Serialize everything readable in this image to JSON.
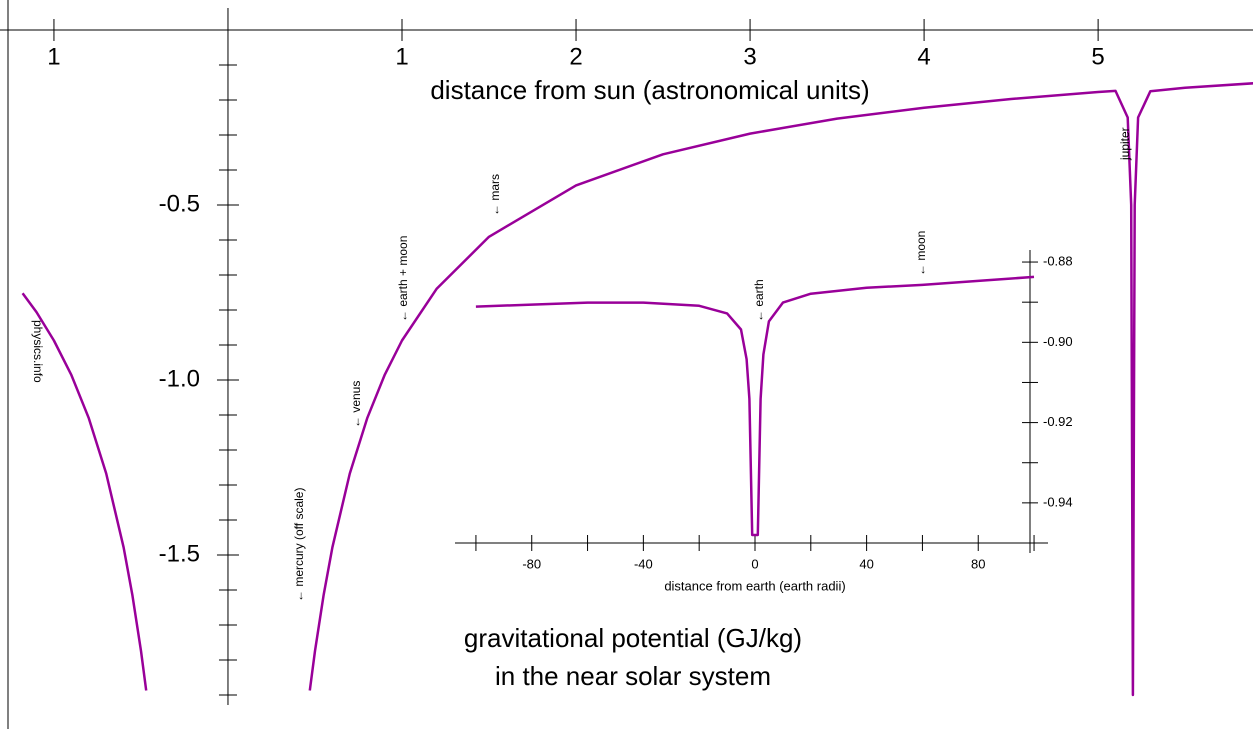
{
  "chart_data": [
    {
      "type": "line",
      "title": [
        "gravitational potential (GJ/kg)",
        "in the near solar system"
      ],
      "xlabel": "distance from sun (astronomical units)",
      "xlim": [
        -1.31,
        5.89
      ],
      "ylim": [
        -1.9,
        0
      ],
      "xticks": [
        {
          "value": -1,
          "label": "1"
        },
        1,
        2,
        3,
        4,
        5
      ],
      "yticks": [
        -0.5,
        {
          "value": -1,
          "label": "-1.0"
        },
        -1.5
      ],
      "yminorticks": [
        -0.1,
        -0.2,
        -0.3,
        -0.4,
        -0.6,
        -0.7,
        -0.8,
        -0.9,
        -1.1,
        -1.2,
        -1.3,
        -1.4,
        -1.6,
        -1.7,
        -1.8,
        -1.9
      ],
      "x": [
        -1.18,
        -1.1,
        -1.0,
        -0.9,
        -0.8,
        -0.7,
        -0.6,
        -0.55,
        -0.5,
        -0.47,
        0,
        0.47,
        0.5,
        0.55,
        0.6,
        0.7,
        0.8,
        0.9,
        1.0,
        1.2,
        1.5,
        2,
        2.5,
        3,
        3.5,
        4,
        4.5,
        5,
        5.1,
        5.17,
        5.19,
        5.2,
        5.21,
        5.23,
        5.3,
        5.5,
        5.9
      ],
      "series": [
        {
          "color": "#990099",
          "values": [
            -0.752,
            -0.806,
            -0.887,
            -0.986,
            -1.109,
            -1.267,
            -1.478,
            -1.613,
            -1.774,
            -1.887,
            null,
            -1.887,
            -1.774,
            -1.613,
            -1.478,
            -1.267,
            -1.109,
            -0.986,
            -0.887,
            -0.739,
            -0.591,
            -0.444,
            -0.355,
            -0.296,
            -0.253,
            -0.222,
            -0.197,
            -0.177,
            -0.174,
            -0.25,
            -0.5,
            -1.9,
            -0.5,
            -0.25,
            -0.175,
            -0.165,
            -0.152
          ]
        }
      ],
      "annotations": [
        "← mercury (off scale)",
        "← venus",
        "← earth + moon",
        "← mars",
        "jupiter",
        "physics.info"
      ]
    },
    {
      "type": "line",
      "xlabel": "distance from earth (earth radii)",
      "xlim": [
        -107.5,
        105
      ],
      "ylim": [
        -0.95,
        -0.877
      ],
      "xticks": [
        -80,
        -40,
        0,
        40,
        80
      ],
      "xminorticks": [
        -100,
        -60,
        -20,
        20,
        60,
        100
      ],
      "yticks": [
        -0.88,
        {
          "value": -0.9,
          "label": "-0.90"
        },
        -0.92,
        -0.94
      ],
      "yminorticks": [
        -0.89,
        -0.91,
        -0.93,
        -0.95
      ],
      "x": [
        -100,
        -80,
        -60,
        -40,
        -20,
        -10,
        -5,
        -3,
        -2,
        -1,
        1,
        2,
        3,
        5,
        10,
        20,
        40,
        60,
        80,
        100
      ],
      "series": [
        {
          "color": "#990099",
          "values": [
            -0.8911,
            -0.8906,
            -0.8901,
            -0.8901,
            -0.8909,
            -0.8928,
            -0.8968,
            -0.9042,
            -0.9141,
            -0.948,
            -0.948,
            -0.9141,
            -0.903,
            -0.8948,
            -0.8901,
            -0.8879,
            -0.8864,
            -0.8857,
            -0.8847,
            -0.8837
          ]
        }
      ],
      "annotations": [
        "← earth",
        "← moon"
      ]
    }
  ]
}
